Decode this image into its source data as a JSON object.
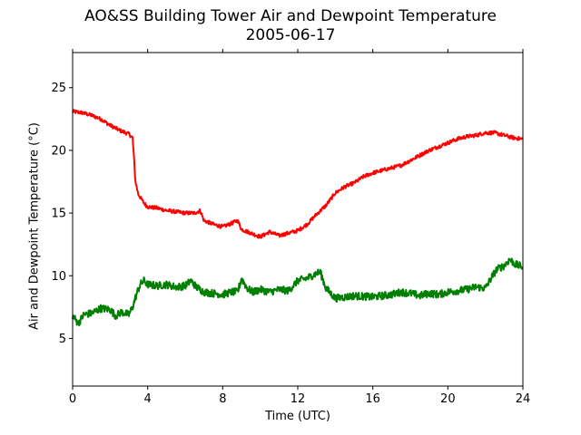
{
  "chart_data": {
    "type": "line",
    "title": "AO&SS Building Tower Air and Dewpoint Temperature",
    "subtitle": "2005-06-17",
    "xlabel": "Time (UTC)",
    "ylabel": "Air and Dewpoint Temperature (°C)",
    "xlim": [
      0,
      24
    ],
    "ylim": [
      1.2,
      27.8
    ],
    "xticks": [
      0,
      4,
      8,
      12,
      16,
      20,
      24
    ],
    "yticks": [
      5,
      10,
      15,
      20,
      25
    ],
    "grid": false,
    "legend": "none",
    "series": [
      {
        "color": "#ff0000",
        "x": [
          0,
          0.5,
          1,
          1.5,
          2,
          2.5,
          3,
          3.2,
          3.35,
          3.5,
          3.8,
          4,
          4.5,
          5,
          5.5,
          6,
          6.5,
          6.8,
          7,
          7.5,
          8,
          8.5,
          8.8,
          9,
          9.5,
          10,
          10.5,
          11,
          11.5,
          12,
          12.5,
          13,
          13.5,
          14,
          14.5,
          15,
          15.5,
          16,
          16.5,
          17,
          17.5,
          18,
          18.5,
          19,
          19.5,
          20,
          20.5,
          21,
          21.5,
          22,
          22.5,
          23,
          23.5,
          24
        ],
        "y": [
          23.1,
          23.0,
          22.8,
          22.5,
          22.0,
          21.6,
          21.3,
          21.0,
          17.5,
          16.5,
          15.8,
          15.5,
          15.4,
          15.2,
          15.1,
          15.0,
          15.0,
          15.2,
          14.4,
          14.1,
          13.9,
          14.2,
          14.4,
          13.7,
          13.4,
          13.1,
          13.5,
          13.2,
          13.4,
          13.6,
          14.1,
          14.9,
          15.6,
          16.6,
          17.1,
          17.4,
          17.9,
          18.2,
          18.4,
          18.6,
          18.8,
          19.2,
          19.6,
          20.0,
          20.3,
          20.6,
          20.9,
          21.1,
          21.2,
          21.4,
          21.4,
          21.2,
          21.0,
          20.9
        ],
        "noise": 0.15
      },
      {
        "color": "#008000",
        "x": [
          0,
          0.3,
          0.6,
          1,
          1.5,
          2,
          2.3,
          2.6,
          3,
          3.2,
          3.4,
          3.6,
          3.8,
          4,
          4.5,
          5,
          5.5,
          6,
          6.3,
          6.6,
          7,
          7.5,
          8,
          8.5,
          8.8,
          9,
          9.3,
          9.6,
          10,
          10.5,
          11,
          11.5,
          12,
          12.5,
          13,
          13.2,
          13.5,
          14,
          14.5,
          15,
          16,
          17,
          17.5,
          18,
          18.5,
          19,
          19.5,
          20,
          20.5,
          21,
          21.5,
          22,
          22.3,
          22.6,
          23,
          23.3,
          23.6,
          24
        ],
        "y": [
          6.8,
          6.2,
          6.9,
          7.0,
          7.4,
          7.3,
          6.8,
          7.1,
          6.9,
          7.5,
          8.5,
          9.3,
          9.6,
          9.3,
          9.2,
          9.3,
          9.1,
          9.2,
          9.6,
          9.1,
          8.7,
          8.6,
          8.5,
          8.7,
          8.7,
          9.8,
          9.0,
          8.7,
          8.9,
          8.7,
          8.9,
          8.8,
          9.6,
          9.8,
          10.2,
          10.3,
          9.0,
          8.2,
          8.3,
          8.4,
          8.3,
          8.5,
          8.7,
          8.6,
          8.4,
          8.6,
          8.5,
          8.7,
          8.8,
          8.9,
          9.1,
          9.0,
          9.8,
          10.5,
          10.8,
          11.3,
          10.9,
          10.7
        ],
        "noise": 0.3
      }
    ]
  }
}
